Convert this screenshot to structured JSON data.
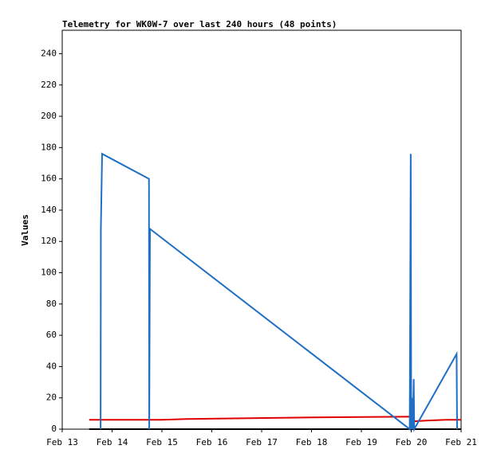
{
  "chart_data": {
    "type": "line",
    "title": "Telemetry for WK0W-7 over last 240 hours (48 points)",
    "y_label": "Values",
    "xlim": [
      13,
      21
    ],
    "ylim": [
      0,
      255
    ],
    "xticks": [
      {
        "value": 13,
        "label": "Feb 13"
      },
      {
        "value": 14,
        "label": "Feb 14"
      },
      {
        "value": 15,
        "label": "Feb 15"
      },
      {
        "value": 16,
        "label": "Feb 16"
      },
      {
        "value": 17,
        "label": "Feb 17"
      },
      {
        "value": 18,
        "label": "Feb 18"
      },
      {
        "value": 19,
        "label": "Feb 19"
      },
      {
        "value": 20,
        "label": "Feb 20"
      },
      {
        "value": 21,
        "label": "Feb 21"
      }
    ],
    "yticks": [
      0,
      20,
      40,
      60,
      80,
      100,
      120,
      140,
      160,
      180,
      200,
      220,
      240
    ],
    "series": [
      {
        "color": "#000000",
        "x": [
          13.54,
          21.0
        ],
        "values": [
          0,
          0
        ]
      },
      {
        "color": "#e00000",
        "x": [
          13.54,
          15.0,
          15.5,
          16.75,
          18.0,
          19.3,
          20.0,
          20.05,
          20.3,
          20.7,
          21.0
        ],
        "values": [
          6,
          6,
          6.5,
          7,
          7.5,
          7.8,
          8,
          5,
          5.5,
          6,
          6
        ]
      },
      {
        "color": "#1f6fc4",
        "x": [
          13.77,
          13.775,
          13.8,
          14.74,
          14.745,
          14.76,
          19.97,
          19.99,
          20.0,
          20.02,
          20.03,
          20.05,
          20.06,
          20.91,
          20.92
        ],
        "values": [
          0,
          128,
          176,
          160,
          0,
          128,
          0,
          176,
          0,
          20,
          0,
          32,
          0,
          48,
          0
        ]
      }
    ]
  }
}
